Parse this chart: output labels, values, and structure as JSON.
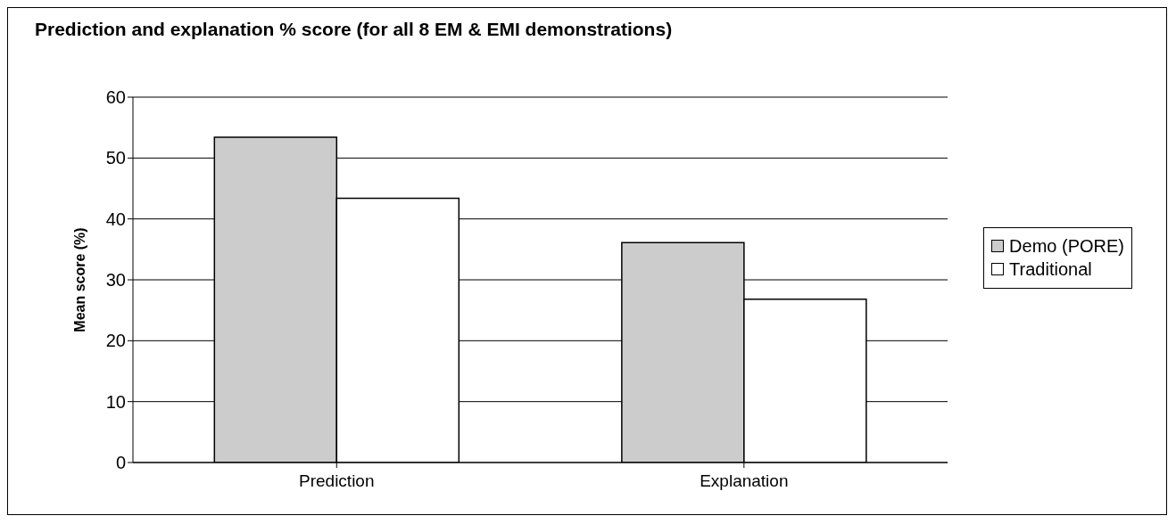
{
  "chart_data": {
    "type": "bar",
    "title": "Prediction and explanation %  score (for all 8 EM & EMI demonstrations)",
    "ylabel": "Mean score (%)",
    "categories": [
      "Prediction",
      "Explanation"
    ],
    "series": [
      {
        "name": "Demo (PORE)",
        "color": "#cccccc",
        "values": [
          53.4,
          36.1
        ]
      },
      {
        "name": "Traditional",
        "color": "#ffffff",
        "values": [
          43.4,
          26.8
        ]
      }
    ],
    "ylim": [
      0,
      60
    ],
    "yticks": [
      0,
      10,
      20,
      30,
      40,
      50,
      60
    ],
    "grid": "y",
    "legend": "right"
  }
}
